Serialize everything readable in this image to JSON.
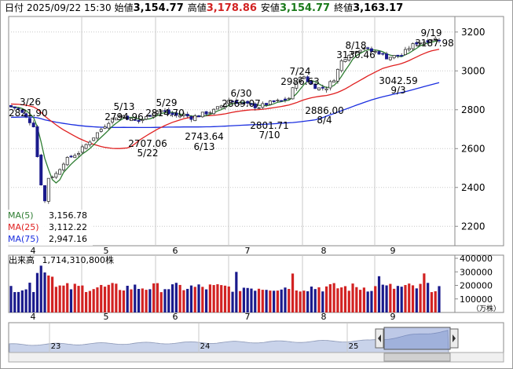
{
  "header": {
    "label_date": "日付",
    "datetime": "2025/09/22 15:30",
    "label_open": "始値",
    "open": "3,154.77",
    "label_high": "高値",
    "high": "3,178.86",
    "label_low": "安値",
    "low": "3,154.77",
    "label_close": "終値",
    "close": "3,163.17"
  },
  "colors": {
    "up": "#d22222",
    "down": "#1a1a8c",
    "ma5": "#2e7d32",
    "ma25": "#e02020",
    "ma75": "#1a2ee0",
    "grid": "#c8c8c8",
    "navfill": "#c9d3ea"
  },
  "legend": [
    {
      "label": "MA(5)",
      "value": "3,156.78",
      "color": "#2e7d32"
    },
    {
      "label": "MA(25)",
      "value": "3,112.22",
      "color": "#e02020"
    },
    {
      "label": "MA(75)",
      "value": "2,947.16",
      "color": "#1a2ee0"
    }
  ],
  "volume": {
    "label": "出来高",
    "value": "1,714,310,800株",
    "unit": "（万株）",
    "y_ticks": [
      "400000",
      "300000",
      "200000",
      "100000"
    ]
  },
  "nav": {
    "years": [
      "23",
      "24",
      "25"
    ]
  },
  "chart_data": {
    "type": "candlestick",
    "months": [
      "4",
      "5",
      "6",
      "7",
      "8",
      "9"
    ],
    "y_ticks": [
      "3200",
      "3000",
      "2800",
      "2600",
      "2400",
      "2200"
    ],
    "ylim": [
      2100,
      3280
    ],
    "annotations": [
      {
        "date": "3/26",
        "value": "2821.90",
        "kind": "high"
      },
      {
        "date": "5/13",
        "value": "2794.96",
        "kind": "high"
      },
      {
        "date": "5/22",
        "value": "2707.06",
        "kind": "low"
      },
      {
        "date": "5/29",
        "value": "2814.70",
        "kind": "high"
      },
      {
        "date": "6/13",
        "value": "2743.64",
        "kind": "low"
      },
      {
        "date": "6/30",
        "value": "2869.07",
        "kind": "high"
      },
      {
        "date": "7/10",
        "value": "2801.71",
        "kind": "low"
      },
      {
        "date": "7/24",
        "value": "2986.63",
        "kind": "high"
      },
      {
        "date": "8/4",
        "value": "2886.00",
        "kind": "low"
      },
      {
        "date": "8/18",
        "value": "3130.46",
        "kind": "high"
      },
      {
        "date": "9/3",
        "value": "3042.59",
        "kind": "low"
      },
      {
        "date": "9/19",
        "value": "3187.98",
        "kind": "high"
      }
    ]
  }
}
